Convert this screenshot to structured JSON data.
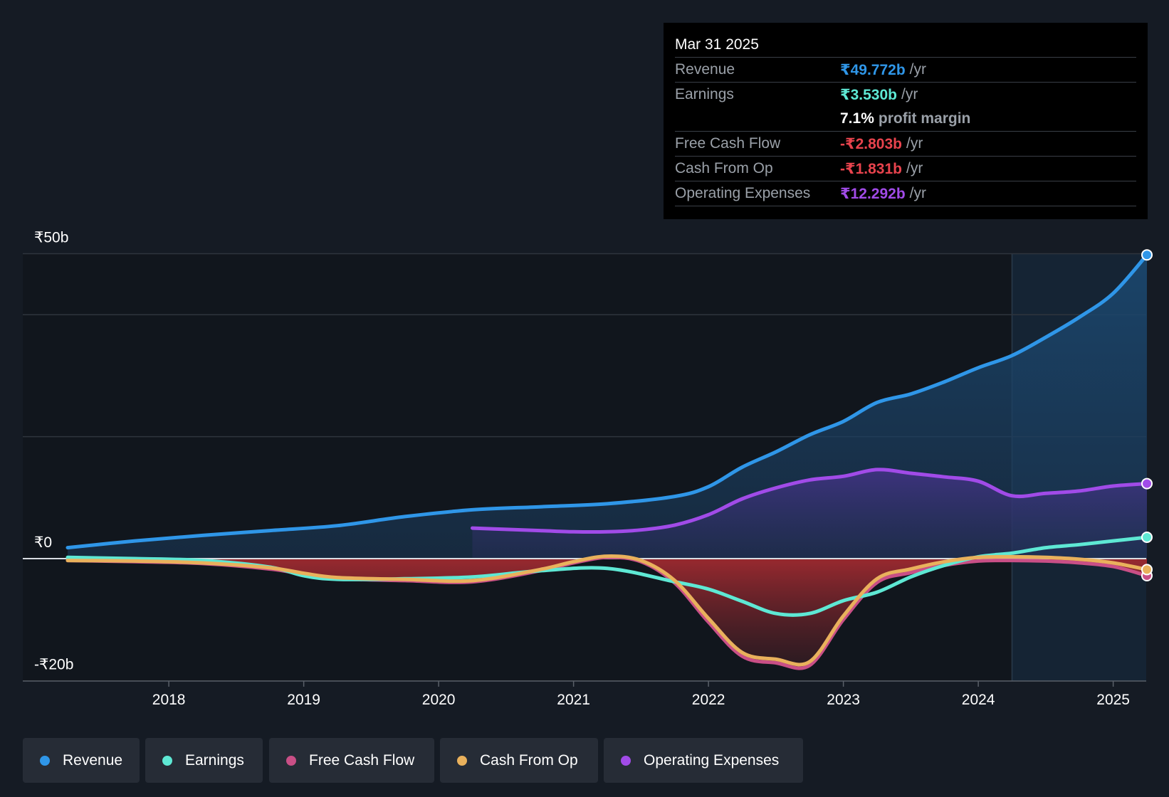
{
  "colors": {
    "revenue": "#2f96e8",
    "earnings": "#5ee8d4",
    "free_cash_flow": "#c94f86",
    "cash_from_op": "#e9b15c",
    "operating_expenses": "#a14be8",
    "negative": "#e8434d",
    "white": "#ffffff"
  },
  "tooltip": {
    "date": "Mar 31 2025",
    "rows": [
      {
        "label": "Revenue",
        "value": "₹49.772b",
        "unit": "/yr"
      },
      {
        "label": "Earnings",
        "value": "₹3.530b",
        "unit": "/yr"
      },
      {
        "label": "",
        "value": "7.1%",
        "unit": "profit margin"
      },
      {
        "label": "Free Cash Flow",
        "value": "-₹2.803b",
        "unit": "/yr"
      },
      {
        "label": "Cash From Op",
        "value": "-₹1.831b",
        "unit": "/yr"
      },
      {
        "label": "Operating Expenses",
        "value": "₹12.292b",
        "unit": "/yr"
      }
    ]
  },
  "legend": [
    {
      "label": "Revenue",
      "icon": "revenue-dot-icon"
    },
    {
      "label": "Earnings",
      "icon": "earnings-dot-icon"
    },
    {
      "label": "Free Cash Flow",
      "icon": "free-cash-flow-dot-icon"
    },
    {
      "label": "Cash From Op",
      "icon": "cash-from-op-dot-icon"
    },
    {
      "label": "Operating Expenses",
      "icon": "operating-expenses-dot-icon"
    }
  ],
  "chart_data": {
    "type": "line",
    "title": "",
    "xlabel": "",
    "ylabel": "",
    "xlim": [
      2017.1,
      2025.25
    ],
    "ylim": [
      -20,
      50
    ],
    "x_ticks": [
      2018,
      2019,
      2020,
      2021,
      2022,
      2023,
      2024,
      2025
    ],
    "x_tick_labels": [
      "2018",
      "2019",
      "2020",
      "2021",
      "2022",
      "2023",
      "2024",
      "2025"
    ],
    "y_labels": [
      {
        "value": 50,
        "label": "₹50b"
      },
      {
        "value": 0,
        "label": "₹0"
      },
      {
        "value": -20,
        "label": "-₹20b"
      }
    ],
    "gridlines": [
      50,
      40,
      20,
      0
    ],
    "forecast_start": 2024.25,
    "series": [
      {
        "name": "Revenue",
        "key": "revenue",
        "x": [
          2017.25,
          2017.75,
          2018.25,
          2018.75,
          2019.25,
          2019.75,
          2020.25,
          2020.75,
          2021.25,
          2021.75,
          2022.0,
          2022.25,
          2022.5,
          2022.75,
          2023.0,
          2023.25,
          2023.5,
          2023.75,
          2024.0,
          2024.25,
          2024.5,
          2024.75,
          2025.0,
          2025.25
        ],
        "values": [
          1.8,
          2.9,
          3.8,
          4.6,
          5.4,
          6.9,
          8.0,
          8.5,
          9.0,
          10.2,
          11.8,
          15.0,
          17.5,
          20.3,
          22.5,
          25.6,
          27.0,
          29.0,
          31.3,
          33.3,
          36.3,
          39.6,
          43.5,
          49.8
        ]
      },
      {
        "name": "Earnings",
        "key": "earnings",
        "x": [
          2017.25,
          2017.75,
          2018.25,
          2018.75,
          2019.0,
          2019.25,
          2019.75,
          2020.25,
          2020.75,
          2021.25,
          2021.75,
          2022.0,
          2022.25,
          2022.5,
          2022.75,
          2023.0,
          2023.25,
          2023.5,
          2023.75,
          2024.0,
          2024.25,
          2024.5,
          2024.75,
          2025.0,
          2025.25
        ],
        "values": [
          0.2,
          0.0,
          -0.3,
          -1.4,
          -2.8,
          -3.4,
          -3.3,
          -3.0,
          -2.0,
          -1.6,
          -3.8,
          -5.0,
          -7.0,
          -9.0,
          -9.0,
          -6.9,
          -5.5,
          -3.0,
          -1.1,
          0.3,
          0.9,
          1.8,
          2.3,
          2.9,
          3.5
        ]
      },
      {
        "name": "Free Cash Flow",
        "key": "free_cash_flow",
        "x": [
          2017.25,
          2017.75,
          2018.25,
          2018.75,
          2019.0,
          2019.25,
          2019.75,
          2020.25,
          2020.75,
          2021.0,
          2021.25,
          2021.5,
          2021.75,
          2022.0,
          2022.25,
          2022.5,
          2022.75,
          2023.0,
          2023.25,
          2023.5,
          2023.75,
          2024.0,
          2024.25,
          2024.5,
          2024.75,
          2025.0,
          2025.25
        ],
        "values": [
          -0.3,
          -0.5,
          -0.8,
          -1.7,
          -2.6,
          -3.3,
          -3.6,
          -3.8,
          -2.0,
          -0.7,
          0.2,
          -0.5,
          -4.0,
          -10.4,
          -16.0,
          -17.1,
          -17.5,
          -10.0,
          -3.9,
          -2.3,
          -1.1,
          -0.4,
          -0.3,
          -0.4,
          -0.7,
          -1.3,
          -2.8
        ]
      },
      {
        "name": "Cash From Op",
        "key": "cash_from_op",
        "x": [
          2017.25,
          2017.75,
          2018.25,
          2018.75,
          2019.0,
          2019.25,
          2019.75,
          2020.25,
          2020.75,
          2021.0,
          2021.25,
          2021.5,
          2021.75,
          2022.0,
          2022.25,
          2022.5,
          2022.75,
          2023.0,
          2023.25,
          2023.5,
          2023.75,
          2024.0,
          2024.25,
          2024.5,
          2024.75,
          2025.0,
          2025.25
        ],
        "values": [
          -0.3,
          -0.4,
          -0.7,
          -1.5,
          -2.4,
          -3.1,
          -3.4,
          -3.6,
          -1.8,
          -0.5,
          0.4,
          -0.3,
          -3.6,
          -9.8,
          -15.4,
          -16.5,
          -16.9,
          -9.4,
          -3.3,
          -1.7,
          -0.5,
          0.2,
          0.3,
          0.2,
          -0.1,
          -0.7,
          -1.8
        ]
      },
      {
        "name": "Operating Expenses",
        "key": "operating_expenses",
        "x": [
          2020.25,
          2020.5,
          2020.75,
          2021.0,
          2021.25,
          2021.5,
          2021.75,
          2022.0,
          2022.25,
          2022.5,
          2022.75,
          2023.0,
          2023.25,
          2023.5,
          2023.75,
          2024.0,
          2024.25,
          2024.5,
          2024.75,
          2025.0,
          2025.25
        ],
        "values": [
          5.0,
          4.8,
          4.6,
          4.4,
          4.4,
          4.7,
          5.5,
          7.2,
          9.8,
          11.6,
          12.9,
          13.5,
          14.6,
          14.0,
          13.4,
          12.7,
          10.3,
          10.7,
          11.1,
          11.9,
          12.3
        ]
      }
    ]
  }
}
